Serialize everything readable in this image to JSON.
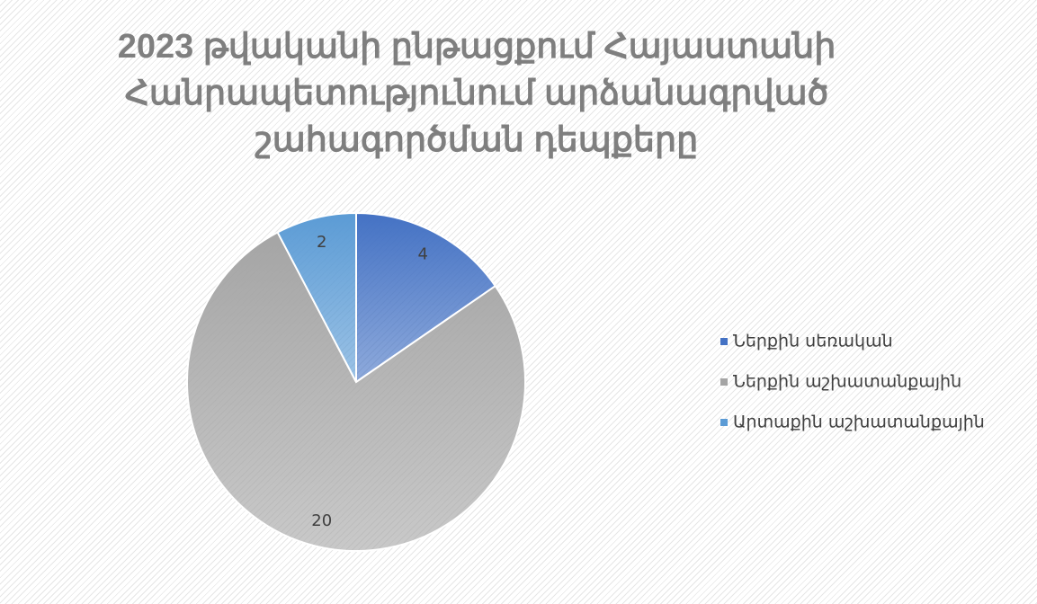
{
  "chart_data": {
    "type": "pie",
    "title": "2023 թվականի ընթացքում Հայաստանի Հանրապետությունում արձանագրված շահագործման դեպքերը",
    "categories": [
      "Ներքին սեռական",
      "Ներքին աշխատանքային",
      "Արտաքին աշխատանքային"
    ],
    "values": [
      4,
      20,
      2
    ],
    "colors": [
      "#4472c4",
      "#a5a5a5",
      "#5b9bd5"
    ],
    "legend": "right"
  }
}
